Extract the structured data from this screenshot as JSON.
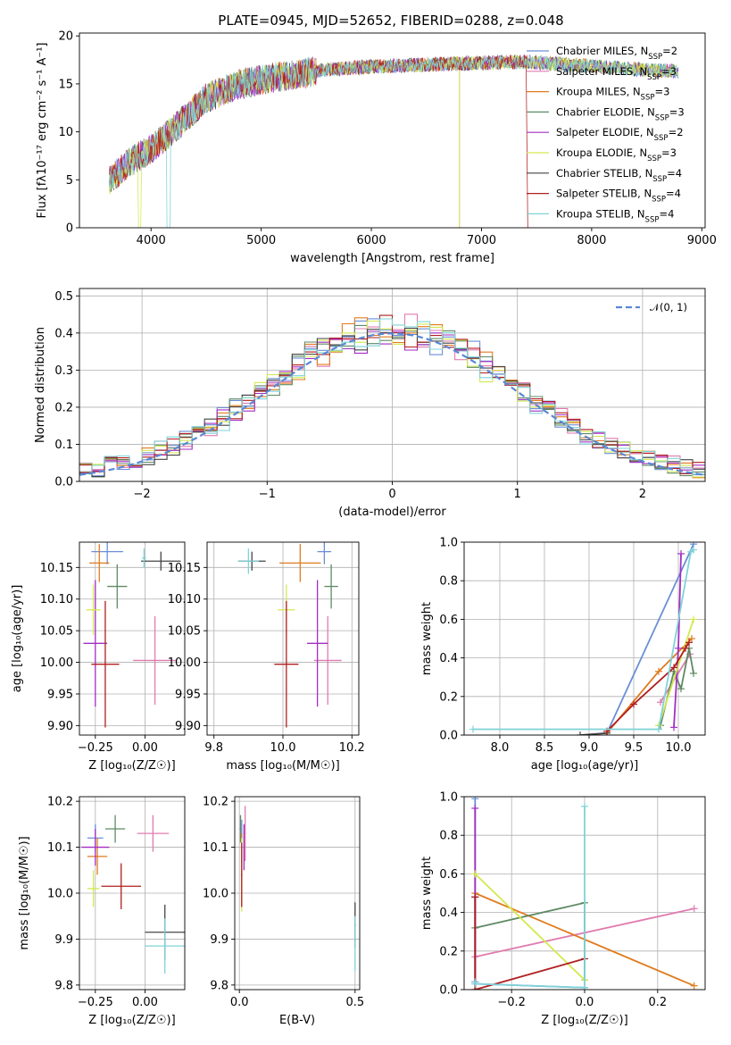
{
  "title": "PLATE=0945, MJD=52652, FIBERID=0288, z=0.048",
  "models": [
    {
      "name": "Chabrier MILES",
      "nssp": "2",
      "color": "#6a8fd6"
    },
    {
      "name": "Salpeter MILES",
      "nssp": "3",
      "color": "#e07bb0"
    },
    {
      "name": "Kroupa MILES",
      "nssp": "3",
      "color": "#e07b1e"
    },
    {
      "name": "Chabrier ELODIE",
      "nssp": "3",
      "color": "#5f8a64"
    },
    {
      "name": "Salpeter ELODIE",
      "nssp": "2",
      "color": "#a22ec4"
    },
    {
      "name": "Kroupa ELODIE",
      "nssp": "3",
      "color": "#d4e84e"
    },
    {
      "name": "Chabrier STELIB",
      "nssp": "4",
      "color": "#444444"
    },
    {
      "name": "Salpeter STELIB",
      "nssp": "4",
      "color": "#b01f1f"
    },
    {
      "name": "Kroupa STELIB",
      "nssp": "4",
      "color": "#7fd3d8"
    }
  ],
  "chart_data": [
    {
      "id": "spectrum",
      "type": "line",
      "xlabel": "wavelength [Angstrom, rest frame]",
      "ylabel": "Flux [fλ10⁻¹⁷ erg cm⁻² s⁻¹ A⁻¹]",
      "xlim": [
        3350,
        9030
      ],
      "ylim": [
        0,
        20.3
      ],
      "xticks": [
        4000,
        5000,
        6000,
        7000,
        8000,
        9000
      ],
      "yticks": [
        0,
        5,
        10,
        15,
        20
      ],
      "grid": false,
      "legend": "right",
      "trend_x": [
        3620,
        3800,
        4000,
        4200,
        4500,
        4800,
        5200,
        5600,
        6000,
        6500,
        7000,
        7400,
        7800,
        8200,
        8600,
        8800
      ],
      "trend_y": [
        4.8,
        6.8,
        8.2,
        10.2,
        13.5,
        15.0,
        15.8,
        16.5,
        16.8,
        17.0,
        17.2,
        17.3,
        17.0,
        16.7,
        16.4,
        16.3
      ]
    },
    {
      "id": "residuals",
      "type": "line",
      "xlabel": "(data-model)/error",
      "ylabel": "Normed distribution",
      "xlim": [
        -2.5,
        2.5
      ],
      "ylim": [
        0,
        0.52
      ],
      "xticks": [
        -2,
        -1,
        0,
        1,
        2
      ],
      "yticks": [
        0.0,
        0.1,
        0.2,
        0.3,
        0.4,
        0.5
      ],
      "grid": true,
      "legend_entry": "𝒩(0, 1)",
      "reference": "normal(0,1)"
    },
    {
      "id": "age_vs_Z",
      "type": "scatter",
      "xlabel": "Z [log₁₀(Z/Z☉)]",
      "ylabel": "age  [log₁₀(age/yr)]",
      "xlim": [
        -0.33,
        0.2
      ],
      "ylim": [
        9.885,
        10.19
      ],
      "xticks": [
        -0.25,
        0.0
      ],
      "yticks": [
        9.9,
        9.95,
        10.0,
        10.05,
        10.1,
        10.15
      ],
      "grid": true,
      "points": [
        {
          "x": -0.19,
          "y": 10.175,
          "xerr": 0.08,
          "yerr": 0.02
        },
        {
          "x": 0.05,
          "y": 10.003,
          "xerr": 0.11,
          "yerr": 0.07
        },
        {
          "x": -0.23,
          "y": 10.157,
          "xerr": 0.05,
          "yerr": 0.03
        },
        {
          "x": -0.14,
          "y": 10.12,
          "xerr": 0.05,
          "yerr": 0.035
        },
        {
          "x": -0.25,
          "y": 10.03,
          "xerr": 0.06,
          "yerr": 0.1
        },
        {
          "x": -0.26,
          "y": 10.083,
          "xerr": 0.035,
          "yerr": 0.04
        },
        {
          "x": 0.08,
          "y": 10.16,
          "xerr": 0.1,
          "yerr": 0.015
        },
        {
          "x": -0.2,
          "y": 9.997,
          "xerr": 0.07,
          "yerr": 0.1
        },
        {
          "x": -0.005,
          "y": 10.165,
          "xerr": 0.01,
          "yerr": 0.015
        }
      ]
    },
    {
      "id": "age_vs_mass",
      "type": "scatter",
      "xlabel": "mass [log₁₀(M/M☉)]",
      "ylabel": "",
      "xlim": [
        9.78,
        10.22
      ],
      "ylim": [
        9.885,
        10.19
      ],
      "xticks": [
        9.8,
        10.0,
        10.2
      ],
      "yticks": [
        9.9,
        9.95,
        10.0,
        10.05,
        10.1,
        10.15
      ],
      "grid": true,
      "points": [
        {
          "x": 10.12,
          "y": 10.175,
          "xerr": 0.02,
          "yerr": 0.02
        },
        {
          "x": 10.13,
          "y": 10.003,
          "xerr": 0.04,
          "yerr": 0.07
        },
        {
          "x": 10.05,
          "y": 10.157,
          "xerr": 0.06,
          "yerr": 0.03
        },
        {
          "x": 10.14,
          "y": 10.12,
          "xerr": 0.02,
          "yerr": 0.035
        },
        {
          "x": 10.1,
          "y": 10.03,
          "xerr": 0.03,
          "yerr": 0.1
        },
        {
          "x": 10.01,
          "y": 10.083,
          "xerr": 0.025,
          "yerr": 0.04
        },
        {
          "x": 9.91,
          "y": 10.16,
          "xerr": 0.04,
          "yerr": 0.015
        },
        {
          "x": 10.01,
          "y": 9.997,
          "xerr": 0.035,
          "yerr": 0.1
        },
        {
          "x": 9.9,
          "y": 10.16,
          "xerr": 0.03,
          "yerr": 0.02
        }
      ]
    },
    {
      "id": "weight_vs_age",
      "type": "line",
      "xlabel": "age  [log₁₀(age/yr)]",
      "ylabel": "mass weight",
      "xlim": [
        7.6,
        10.3
      ],
      "ylim": [
        0,
        1.0
      ],
      "xticks": [
        8.0,
        8.5,
        9.0,
        9.5,
        10.0
      ],
      "yticks": [
        0.0,
        0.2,
        0.4,
        0.6,
        0.8,
        1.0
      ],
      "grid": true,
      "series": [
        {
          "x": [
            9.2,
            10.17
          ],
          "y": [
            0.01,
            0.99
          ]
        },
        {
          "x": [
            9.8,
            10.13
          ],
          "y": [
            0.17,
            0.42
          ]
        },
        {
          "x": [
            9.2,
            9.78,
            10.15
          ],
          "y": [
            0.01,
            0.33,
            0.5
          ]
        },
        {
          "x": [
            9.8,
            9.95,
            10.03,
            10.12,
            10.17
          ],
          "y": [
            0.05,
            0.33,
            0.24,
            0.45,
            0.32
          ]
        },
        {
          "x": [
            9.95,
            10.0,
            10.03
          ],
          "y": [
            0.04,
            0.45,
            0.94
          ]
        },
        {
          "x": [
            9.78,
            10.17
          ],
          "y": [
            0.05,
            0.6
          ]
        },
        {
          "x": [
            8.9,
            9.2
          ],
          "y": [
            0.0,
            0.01
          ]
        },
        {
          "x": [
            9.2,
            9.5,
            9.95,
            10.08,
            10.12
          ],
          "y": [
            0.02,
            0.16,
            0.35,
            0.45,
            0.48
          ]
        },
        {
          "x": [
            7.7,
            9.78,
            10.14,
            10.17
          ],
          "y": [
            0.03,
            0.03,
            0.95,
            0.96
          ]
        }
      ]
    },
    {
      "id": "mass_vs_Z",
      "type": "scatter",
      "xlabel": "Z [log₁₀(Z/Z☉)]",
      "ylabel": "mass [log₁₀(M/M☉)]",
      "xlim": [
        -0.33,
        0.2
      ],
      "ylim": [
        9.79,
        10.21
      ],
      "xticks": [
        -0.25,
        0.0
      ],
      "yticks": [
        9.8,
        9.9,
        10.0,
        10.1,
        10.2
      ],
      "grid": true,
      "points": [
        {
          "x": -0.25,
          "y": 10.12,
          "xerr": 0.04,
          "yerr": 0.03
        },
        {
          "x": 0.04,
          "y": 10.13,
          "xerr": 0.08,
          "yerr": 0.04
        },
        {
          "x": -0.24,
          "y": 10.08,
          "xerr": 0.05,
          "yerr": 0.04
        },
        {
          "x": -0.15,
          "y": 10.14,
          "xerr": 0.05,
          "yerr": 0.03
        },
        {
          "x": -0.25,
          "y": 10.1,
          "xerr": 0.07,
          "yerr": 0.04
        },
        {
          "x": -0.26,
          "y": 10.01,
          "xerr": 0.03,
          "yerr": 0.04
        },
        {
          "x": 0.1,
          "y": 9.915,
          "xerr": 0.1,
          "yerr": 0.06
        },
        {
          "x": -0.12,
          "y": 10.015,
          "xerr": 0.1,
          "yerr": 0.05
        },
        {
          "x": 0.1,
          "y": 9.885,
          "xerr": 0.1,
          "yerr": 0.06
        }
      ]
    },
    {
      "id": "mass_vs_EBV",
      "type": "scatter",
      "xlabel": "E(B-V)",
      "ylabel": "",
      "xlim": [
        -0.02,
        0.52
      ],
      "ylim": [
        9.79,
        10.21
      ],
      "xticks": [
        0.0,
        0.5
      ],
      "yticks": [
        9.8,
        9.9,
        10.0,
        10.1,
        10.2
      ],
      "grid": true,
      "points": [
        {
          "x": 0.01,
          "y": 10.12,
          "xerr": 0.003,
          "yerr": 0.04
        },
        {
          "x": 0.025,
          "y": 10.13,
          "xerr": 0.003,
          "yerr": 0.06
        },
        {
          "x": 0.01,
          "y": 10.05,
          "xerr": 0.003,
          "yerr": 0.08
        },
        {
          "x": 0.005,
          "y": 10.14,
          "xerr": 0.003,
          "yerr": 0.03
        },
        {
          "x": 0.02,
          "y": 10.1,
          "xerr": 0.003,
          "yerr": 0.05
        },
        {
          "x": 0.01,
          "y": 10.04,
          "xerr": 0.003,
          "yerr": 0.08
        },
        {
          "x": 0.5,
          "y": 9.93,
          "xerr": 0.003,
          "yerr": 0.05
        },
        {
          "x": 0.01,
          "y": 10.04,
          "xerr": 0.003,
          "yerr": 0.07
        },
        {
          "x": 0.5,
          "y": 9.89,
          "xerr": 0.003,
          "yerr": 0.06
        }
      ]
    },
    {
      "id": "weight_vs_Z",
      "type": "line",
      "xlabel": "Z [log₁₀(Z/Z☉)]",
      "ylabel": "mass weight",
      "xlim": [
        -0.33,
        0.33
      ],
      "ylim": [
        0,
        1.0
      ],
      "xticks": [
        -0.2,
        0.0,
        0.2
      ],
      "yticks": [
        0.0,
        0.2,
        0.4,
        0.6,
        0.8,
        1.0
      ],
      "grid": true,
      "series": [
        {
          "x": [
            -0.3,
            -0.3,
            0.0,
            0.0
          ],
          "y": [
            0.99,
            0.03,
            0.01,
            0.01
          ]
        },
        {
          "x": [
            -0.3,
            0.3
          ],
          "y": [
            0.17,
            0.42
          ]
        },
        {
          "x": [
            -0.3,
            0.3
          ],
          "y": [
            0.5,
            0.02
          ]
        },
        {
          "x": [
            -0.3,
            0.0,
            0.0
          ],
          "y": [
            0.32,
            0.45,
            0.05
          ]
        },
        {
          "x": [
            -0.3,
            -0.3
          ],
          "y": [
            0.94,
            0.04
          ]
        },
        {
          "x": [
            -0.3,
            0.0
          ],
          "y": [
            0.6,
            0.05
          ]
        },
        {
          "x": [
            -0.3,
            -0.3
          ],
          "y": [
            0.48,
            0.0
          ]
        },
        {
          "x": [
            -0.3,
            -0.3,
            0.0
          ],
          "y": [
            0.48,
            0.0,
            0.16
          ]
        },
        {
          "x": [
            -0.3,
            -0.3,
            0.0,
            0.0
          ],
          "y": [
            0.04,
            0.03,
            0.01,
            0.95
          ]
        }
      ]
    }
  ]
}
